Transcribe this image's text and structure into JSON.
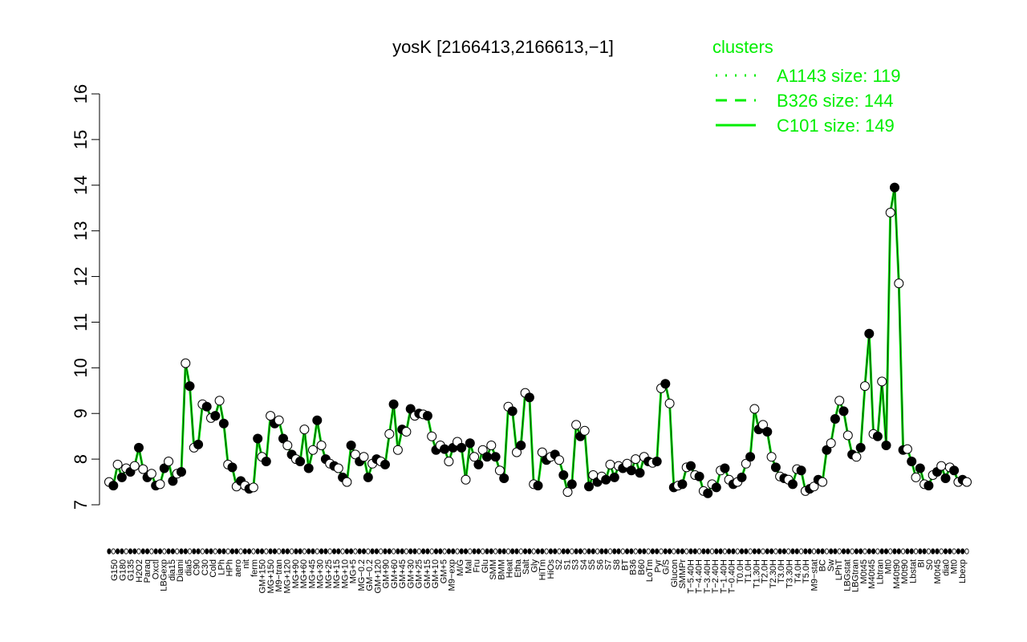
{
  "chart_data": {
    "type": "line",
    "title": "yosK [2166413,2166613,−1]",
    "xlabel": "",
    "ylabel": "",
    "ylim": [
      7,
      16
    ],
    "yticks": [
      7,
      8,
      9,
      10,
      11,
      12,
      13,
      14,
      15,
      16
    ],
    "line_color": "#00ee00",
    "legend": {
      "title": "clusters",
      "position": "top-right",
      "entries": [
        {
          "label": "A1143 size: 119",
          "style": "dotted"
        },
        {
          "label": "B326 size: 144",
          "style": "dashed"
        },
        {
          "label": "C101 size: 149",
          "style": "solid"
        }
      ]
    },
    "x_tick_labels": [
      "G150",
      "G180",
      "G135",
      "H2O2",
      "Paraq",
      "Oxctl",
      "LBGexp",
      "dia15",
      "Diami",
      "dia5",
      "C90",
      "C30",
      "Cold",
      "LPh",
      "HPh",
      "aero",
      "nit",
      "ferm",
      "GM+150",
      "MG+150",
      "M9−tran",
      "MG+120",
      "MG+90",
      "MG+60",
      "MG+45",
      "MG+30",
      "MG+25",
      "MG+15",
      "MG+10",
      "MG+5",
      "MG−0.2",
      "GM−0.2",
      "GM+120",
      "GM+90",
      "GM+60",
      "GM+45",
      "GM+30",
      "GM+25",
      "GM+15",
      "GM+10",
      "GM+5",
      "M9−exp",
      "M/G",
      "Mal",
      "Fru",
      "Glu",
      "SMM",
      "BMM",
      "Heat",
      "Etha",
      "Salt",
      "Gly",
      "HiTm",
      "HiOs",
      "S2",
      "S1",
      "S3",
      "S4",
      "S5",
      "S6",
      "S7",
      "S8",
      "BT",
      "B36",
      "B60",
      "LoTm",
      "Pyr",
      "G/S",
      "Glucon",
      "SMMPr",
      "T−5.40H",
      "T−4.40H",
      "T−3.40H",
      "T−2.40H",
      "T−1.40H",
      "T−0.40H",
      "T0.0H",
      "T1.0H",
      "T1.30H",
      "T2.0H",
      "T2.30H",
      "T3.0H",
      "T3.30H",
      "T4.0H",
      "T5.0H",
      "M9−stat",
      "BC",
      "Sw",
      "LPhT",
      "LBGstat",
      "LBGtran",
      "M0t45",
      "M40t45",
      "Lbtran",
      "Mt0",
      "M40t90",
      "M0t90",
      "Lbstat",
      "BI",
      "S0",
      "M0t45",
      "dia0",
      "Mt0",
      "Lbexp"
    ],
    "series": [
      {
        "name": "",
        "points": [
          {
            "x": 1,
            "y": 7.5
          },
          {
            "x": 2,
            "y": 7.42
          },
          {
            "x": 3,
            "y": 7.88
          },
          {
            "x": 4,
            "y": 7.6
          },
          {
            "x": 5,
            "y": 7.8
          },
          {
            "x": 6,
            "y": 7.72
          },
          {
            "x": 7,
            "y": 7.85
          },
          {
            "x": 8,
            "y": 8.25
          },
          {
            "x": 9,
            "y": 7.78
          },
          {
            "x": 10,
            "y": 7.6
          },
          {
            "x": 11,
            "y": 7.68
          },
          {
            "x": 12,
            "y": 7.42
          },
          {
            "x": 13,
            "y": 7.45
          },
          {
            "x": 14,
            "y": 7.8
          },
          {
            "x": 15,
            "y": 7.95
          },
          {
            "x": 16,
            "y": 7.52
          },
          {
            "x": 17,
            "y": 7.68
          },
          {
            "x": 18,
            "y": 7.72
          },
          {
            "x": 19,
            "y": 10.1
          },
          {
            "x": 20,
            "y": 9.6
          },
          {
            "x": 21,
            "y": 8.25
          },
          {
            "x": 22,
            "y": 8.32
          },
          {
            "x": 23,
            "y": 9.2
          },
          {
            "x": 24,
            "y": 9.15
          },
          {
            "x": 25,
            "y": 8.9
          },
          {
            "x": 26,
            "y": 8.95
          },
          {
            "x": 27,
            "y": 9.28
          },
          {
            "x": 28,
            "y": 8.78
          },
          {
            "x": 29,
            "y": 7.88
          },
          {
            "x": 30,
            "y": 7.82
          },
          {
            "x": 31,
            "y": 7.4
          },
          {
            "x": 32,
            "y": 7.52
          },
          {
            "x": 33,
            "y": 7.42
          },
          {
            "x": 34,
            "y": 7.35
          },
          {
            "x": 35,
            "y": 7.38
          },
          {
            "x": 36,
            "y": 8.45
          },
          {
            "x": 37,
            "y": 8.05
          },
          {
            "x": 38,
            "y": 7.95
          },
          {
            "x": 39,
            "y": 8.95
          },
          {
            "x": 40,
            "y": 8.78
          },
          {
            "x": 41,
            "y": 8.85
          },
          {
            "x": 42,
            "y": 8.45
          },
          {
            "x": 43,
            "y": 8.3
          },
          {
            "x": 44,
            "y": 8.1
          },
          {
            "x": 45,
            "y": 8.0
          },
          {
            "x": 46,
            "y": 7.95
          },
          {
            "x": 47,
            "y": 8.65
          },
          {
            "x": 48,
            "y": 7.8
          },
          {
            "x": 49,
            "y": 8.2
          },
          {
            "x": 50,
            "y": 8.85
          },
          {
            "x": 51,
            "y": 8.3
          },
          {
            "x": 52,
            "y": 8.0
          },
          {
            "x": 53,
            "y": 7.9
          },
          {
            "x": 54,
            "y": 7.85
          },
          {
            "x": 55,
            "y": 7.8
          },
          {
            "x": 56,
            "y": 7.6
          },
          {
            "x": 57,
            "y": 7.5
          },
          {
            "x": 58,
            "y": 8.3
          },
          {
            "x": 59,
            "y": 8.1
          },
          {
            "x": 60,
            "y": 7.95
          },
          {
            "x": 61,
            "y": 8.05
          },
          {
            "x": 62,
            "y": 7.6
          },
          {
            "x": 63,
            "y": 7.9
          },
          {
            "x": 64,
            "y": 8.0
          },
          {
            "x": 65,
            "y": 7.95
          },
          {
            "x": 66,
            "y": 7.88
          },
          {
            "x": 67,
            "y": 8.55
          },
          {
            "x": 68,
            "y": 9.2
          },
          {
            "x": 69,
            "y": 8.2
          },
          {
            "x": 70,
            "y": 8.65
          },
          {
            "x": 71,
            "y": 8.6
          },
          {
            "x": 72,
            "y": 9.1
          },
          {
            "x": 73,
            "y": 8.95
          },
          {
            "x": 74,
            "y": 9.0
          },
          {
            "x": 75,
            "y": 8.98
          },
          {
            "x": 76,
            "y": 8.95
          },
          {
            "x": 77,
            "y": 8.5
          },
          {
            "x": 78,
            "y": 8.2
          },
          {
            "x": 79,
            "y": 8.3
          },
          {
            "x": 80,
            "y": 8.22
          },
          {
            "x": 81,
            "y": 7.95
          },
          {
            "x": 82,
            "y": 8.25
          },
          {
            "x": 83,
            "y": 8.38
          },
          {
            "x": 84,
            "y": 8.25
          },
          {
            "x": 85,
            "y": 7.55
          },
          {
            "x": 86,
            "y": 8.35
          },
          {
            "x": 87,
            "y": 8.05
          },
          {
            "x": 88,
            "y": 7.88
          },
          {
            "x": 89,
            "y": 8.2
          },
          {
            "x": 90,
            "y": 8.05
          },
          {
            "x": 91,
            "y": 8.3
          },
          {
            "x": 92,
            "y": 8.05
          },
          {
            "x": 93,
            "y": 7.75
          },
          {
            "x": 94,
            "y": 7.58
          },
          {
            "x": 95,
            "y": 9.15
          },
          {
            "x": 96,
            "y": 9.05
          },
          {
            "x": 97,
            "y": 8.15
          },
          {
            "x": 98,
            "y": 8.3
          },
          {
            "x": 99,
            "y": 9.45
          },
          {
            "x": 100,
            "y": 9.35
          },
          {
            "x": 101,
            "y": 7.45
          },
          {
            "x": 102,
            "y": 7.42
          },
          {
            "x": 103,
            "y": 8.15
          },
          {
            "x": 104,
            "y": 7.98
          },
          {
            "x": 105,
            "y": 8.05
          },
          {
            "x": 106,
            "y": 8.1
          },
          {
            "x": 107,
            "y": 7.98
          },
          {
            "x": 108,
            "y": 7.65
          },
          {
            "x": 109,
            "y": 7.28
          },
          {
            "x": 110,
            "y": 7.45
          },
          {
            "x": 111,
            "y": 8.75
          },
          {
            "x": 112,
            "y": 8.5
          },
          {
            "x": 113,
            "y": 8.62
          },
          {
            "x": 114,
            "y": 7.4
          },
          {
            "x": 115,
            "y": 7.65
          },
          {
            "x": 116,
            "y": 7.5
          },
          {
            "x": 117,
            "y": 7.62
          },
          {
            "x": 118,
            "y": 7.55
          },
          {
            "x": 119,
            "y": 7.88
          },
          {
            "x": 120,
            "y": 7.6
          },
          {
            "x": 121,
            "y": 7.85
          },
          {
            "x": 122,
            "y": 7.8
          },
          {
            "x": 123,
            "y": 7.9
          },
          {
            "x": 124,
            "y": 7.75
          },
          {
            "x": 125,
            "y": 8.0
          },
          {
            "x": 126,
            "y": 7.7
          },
          {
            "x": 127,
            "y": 8.05
          },
          {
            "x": 128,
            "y": 7.95
          },
          {
            "x": 129,
            "y": 7.92
          },
          {
            "x": 130,
            "y": 7.95
          },
          {
            "x": 131,
            "y": 9.55
          },
          {
            "x": 132,
            "y": 9.65
          },
          {
            "x": 133,
            "y": 9.22
          },
          {
            "x": 134,
            "y": 7.38
          },
          {
            "x": 135,
            "y": 7.42
          },
          {
            "x": 136,
            "y": 7.45
          },
          {
            "x": 137,
            "y": 7.82
          },
          {
            "x": 138,
            "y": 7.85
          },
          {
            "x": 139,
            "y": 7.65
          },
          {
            "x": 140,
            "y": 7.62
          },
          {
            "x": 141,
            "y": 7.3
          },
          {
            "x": 142,
            "y": 7.25
          },
          {
            "x": 143,
            "y": 7.45
          },
          {
            "x": 144,
            "y": 7.38
          },
          {
            "x": 145,
            "y": 7.75
          },
          {
            "x": 146,
            "y": 7.8
          },
          {
            "x": 147,
            "y": 7.55
          },
          {
            "x": 148,
            "y": 7.45
          },
          {
            "x": 149,
            "y": 7.5
          },
          {
            "x": 150,
            "y": 7.6
          },
          {
            "x": 151,
            "y": 7.9
          },
          {
            "x": 152,
            "y": 8.05
          },
          {
            "x": 153,
            "y": 9.1
          },
          {
            "x": 154,
            "y": 8.65
          },
          {
            "x": 155,
            "y": 8.75
          },
          {
            "x": 156,
            "y": 8.6
          },
          {
            "x": 157,
            "y": 8.05
          },
          {
            "x": 158,
            "y": 7.82
          },
          {
            "x": 159,
            "y": 7.62
          },
          {
            "x": 160,
            "y": 7.58
          },
          {
            "x": 161,
            "y": 7.55
          },
          {
            "x": 162,
            "y": 7.45
          },
          {
            "x": 163,
            "y": 7.78
          },
          {
            "x": 164,
            "y": 7.75
          },
          {
            "x": 165,
            "y": 7.3
          },
          {
            "x": 166,
            "y": 7.35
          },
          {
            "x": 167,
            "y": 7.4
          },
          {
            "x": 168,
            "y": 7.55
          },
          {
            "x": 169,
            "y": 7.5
          },
          {
            "x": 170,
            "y": 8.2
          },
          {
            "x": 171,
            "y": 8.35
          },
          {
            "x": 172,
            "y": 8.88
          },
          {
            "x": 173,
            "y": 9.28
          },
          {
            "x": 174,
            "y": 9.05
          },
          {
            "x": 175,
            "y": 8.52
          },
          {
            "x": 176,
            "y": 8.1
          },
          {
            "x": 177,
            "y": 8.05
          },
          {
            "x": 178,
            "y": 8.25
          },
          {
            "x": 179,
            "y": 9.6
          },
          {
            "x": 180,
            "y": 10.75
          },
          {
            "x": 181,
            "y": 8.55
          },
          {
            "x": 182,
            "y": 8.5
          },
          {
            "x": 183,
            "y": 9.7
          },
          {
            "x": 184,
            "y": 8.3
          },
          {
            "x": 185,
            "y": 13.4
          },
          {
            "x": 186,
            "y": 13.95
          },
          {
            "x": 187,
            "y": 11.85
          },
          {
            "x": 188,
            "y": 8.2
          },
          {
            "x": 189,
            "y": 8.22
          },
          {
            "x": 190,
            "y": 7.95
          },
          {
            "x": 191,
            "y": 7.6
          },
          {
            "x": 192,
            "y": 7.8
          },
          {
            "x": 193,
            "y": 7.45
          },
          {
            "x": 194,
            "y": 7.42
          },
          {
            "x": 195,
            "y": 7.65
          },
          {
            "x": 196,
            "y": 7.72
          },
          {
            "x": 197,
            "y": 7.85
          },
          {
            "x": 198,
            "y": 7.58
          },
          {
            "x": 199,
            "y": 7.82
          },
          {
            "x": 200,
            "y": 7.75
          },
          {
            "x": 201,
            "y": 7.5
          },
          {
            "x": 202,
            "y": 7.55
          },
          {
            "x": 203,
            "y": 7.5
          }
        ]
      }
    ]
  }
}
